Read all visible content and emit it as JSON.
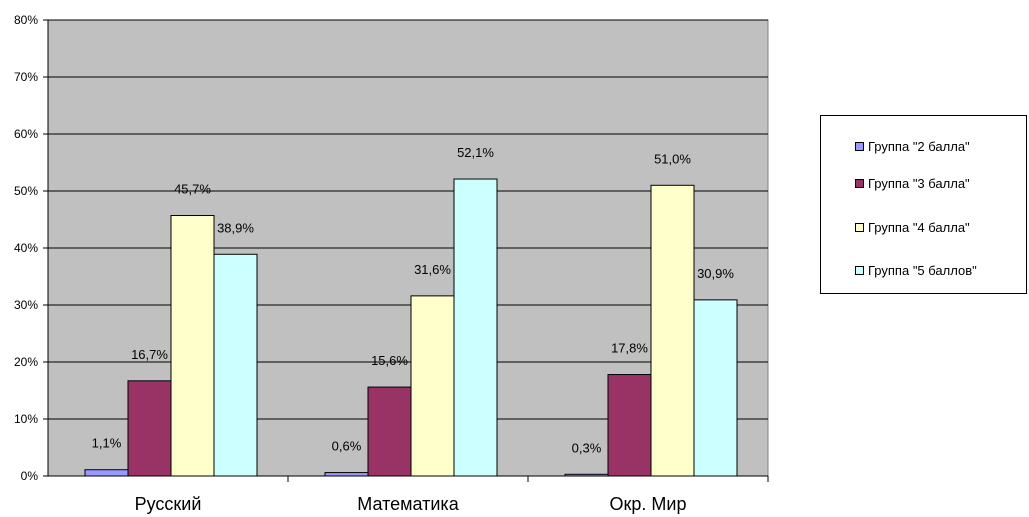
{
  "chart_data": {
    "type": "bar",
    "categories": [
      "Русский",
      "Математика",
      "Окр. Мир"
    ],
    "series": [
      {
        "name": "Группа \"2 балла\"",
        "values": [
          1.1,
          0.6,
          0.3
        ],
        "labels": [
          "1,1%",
          "0,6%",
          "0,3%"
        ],
        "color": "#9999ff"
      },
      {
        "name": "Группа \"3 балла\"",
        "values": [
          16.7,
          15.6,
          17.8
        ],
        "labels": [
          "16,7%",
          "15,6%",
          "17,8%"
        ],
        "color": "#993366"
      },
      {
        "name": "Группа \"4 балла\"",
        "values": [
          45.7,
          31.6,
          51.0
        ],
        "labels": [
          "45,7%",
          "31,6%",
          "51,0%"
        ],
        "color": "#ffffcc"
      },
      {
        "name": "Группа \"5 баллов\"",
        "values": [
          38.9,
          52.1,
          30.9
        ],
        "labels": [
          "38,9%",
          "52,1%",
          "30,9%"
        ],
        "color": "#ccffff"
      }
    ],
    "yticks": [
      "0%",
      "10%",
      "20%",
      "30%",
      "40%",
      "50%",
      "60%",
      "70%",
      "80%"
    ],
    "ylim": [
      0,
      80
    ],
    "grid": true,
    "plot_background": "#c0c0c0",
    "legend_position": "right"
  }
}
